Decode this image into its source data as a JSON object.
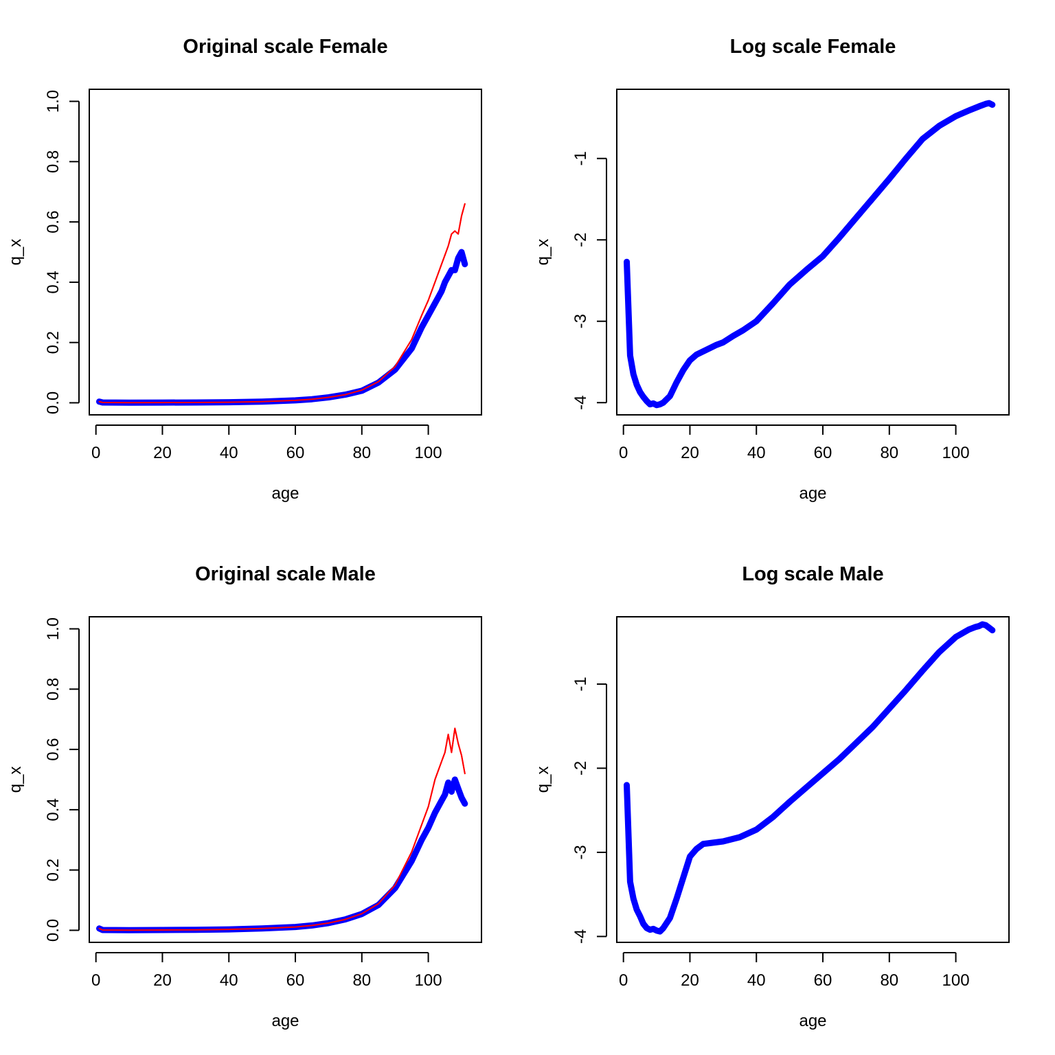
{
  "chart_data": [
    {
      "type": "line",
      "title": "Original scale Female",
      "xlabel": "age",
      "ylabel": "q_x",
      "xlim": [
        -2,
        116
      ],
      "ylim": [
        -0.04,
        1.04
      ],
      "xticks": [
        0,
        20,
        40,
        60,
        80,
        100
      ],
      "yticks": [
        0.0,
        0.2,
        0.4,
        0.6,
        0.8,
        1.0
      ],
      "xtick_labels": [
        "0",
        "20",
        "40",
        "60",
        "80",
        "100"
      ],
      "ytick_labels": [
        "0.0",
        "0.2",
        "0.4",
        "0.6",
        "0.8",
        "1.0"
      ],
      "grid": false,
      "legend": "none",
      "series": [
        {
          "color": "#ff0000",
          "style": "thin",
          "x": [
            1,
            2,
            10,
            20,
            30,
            40,
            50,
            60,
            65,
            70,
            75,
            80,
            85,
            90,
            95,
            98,
            100,
            102,
            104,
            105,
            106,
            107,
            108,
            109,
            110,
            111
          ],
          "y": [
            0.004,
            0.001,
            0.0005,
            0.0008,
            0.001,
            0.002,
            0.004,
            0.008,
            0.012,
            0.018,
            0.027,
            0.042,
            0.07,
            0.12,
            0.21,
            0.29,
            0.34,
            0.4,
            0.46,
            0.49,
            0.52,
            0.56,
            0.57,
            0.56,
            0.62,
            0.66
          ]
        },
        {
          "color": "#0000ff",
          "style": "thick",
          "x": [
            1,
            2,
            10,
            20,
            30,
            40,
            50,
            60,
            65,
            70,
            75,
            80,
            85,
            90,
            95,
            98,
            100,
            102,
            104,
            105,
            106,
            107,
            108,
            109,
            110,
            111
          ],
          "y": [
            0.004,
            0.001,
            0.0005,
            0.0008,
            0.001,
            0.002,
            0.004,
            0.008,
            0.012,
            0.018,
            0.027,
            0.04,
            0.067,
            0.11,
            0.18,
            0.25,
            0.29,
            0.33,
            0.37,
            0.4,
            0.42,
            0.44,
            0.44,
            0.48,
            0.5,
            0.46
          ]
        }
      ]
    },
    {
      "type": "line",
      "title": "Log scale Female",
      "xlabel": "age",
      "ylabel": "q_x",
      "xlim": [
        -2,
        116
      ],
      "ylim": [
        -4.15,
        -0.15
      ],
      "xticks": [
        0,
        20,
        40,
        60,
        80,
        100
      ],
      "yticks": [
        -4,
        -3,
        -2,
        -1
      ],
      "xtick_labels": [
        "0",
        "20",
        "40",
        "60",
        "80",
        "100"
      ],
      "ytick_labels": [
        "-4",
        "-3",
        "-2",
        "-1"
      ],
      "grid": false,
      "legend": "none",
      "series": [
        {
          "color": "#0000ff",
          "style": "thick",
          "x": [
            1,
            2,
            3,
            4,
            5,
            6,
            7,
            8,
            9,
            10,
            11,
            12,
            14,
            16,
            18,
            20,
            22,
            25,
            28,
            30,
            33,
            36,
            40,
            45,
            50,
            55,
            60,
            65,
            70,
            75,
            80,
            85,
            90,
            95,
            100,
            104,
            107,
            109,
            110,
            111
          ],
          "y": [
            -2.27,
            -3.42,
            -3.65,
            -3.78,
            -3.87,
            -3.93,
            -3.98,
            -4.02,
            -4.01,
            -4.03,
            -4.02,
            -4.0,
            -3.92,
            -3.75,
            -3.6,
            -3.48,
            -3.41,
            -3.35,
            -3.29,
            -3.26,
            -3.18,
            -3.11,
            -3.0,
            -2.78,
            -2.55,
            -2.37,
            -2.2,
            -1.97,
            -1.73,
            -1.49,
            -1.25,
            -1.0,
            -0.76,
            -0.6,
            -0.48,
            -0.41,
            -0.36,
            -0.33,
            -0.32,
            -0.34
          ]
        }
      ]
    },
    {
      "type": "line",
      "title": "Original scale Male",
      "xlabel": "age",
      "ylabel": "q_x",
      "xlim": [
        -2,
        116
      ],
      "ylim": [
        -0.04,
        1.04
      ],
      "xticks": [
        0,
        20,
        40,
        60,
        80,
        100
      ],
      "yticks": [
        0.0,
        0.2,
        0.4,
        0.6,
        0.8,
        1.0
      ],
      "xtick_labels": [
        "0",
        "20",
        "40",
        "60",
        "80",
        "100"
      ],
      "ytick_labels": [
        "0.0",
        "0.2",
        "0.4",
        "0.6",
        "0.8",
        "1.0"
      ],
      "grid": false,
      "legend": "none",
      "series": [
        {
          "color": "#ff0000",
          "style": "thin",
          "x": [
            1,
            2,
            10,
            20,
            30,
            40,
            50,
            60,
            65,
            70,
            75,
            80,
            85,
            90,
            95,
            98,
            100,
            102,
            104,
            105,
            106,
            107,
            108,
            109,
            110,
            111
          ],
          "y": [
            0.006,
            0.001,
            0.0005,
            0.001,
            0.0015,
            0.003,
            0.006,
            0.011,
            0.016,
            0.024,
            0.036,
            0.055,
            0.088,
            0.15,
            0.26,
            0.35,
            0.41,
            0.5,
            0.56,
            0.59,
            0.65,
            0.59,
            0.67,
            0.62,
            0.58,
            0.52
          ]
        },
        {
          "color": "#0000ff",
          "style": "thick",
          "x": [
            1,
            2,
            10,
            20,
            30,
            40,
            50,
            60,
            65,
            70,
            75,
            80,
            85,
            90,
            95,
            98,
            100,
            102,
            104,
            105,
            106,
            107,
            108,
            109,
            110,
            111
          ],
          "y": [
            0.006,
            0.001,
            0.0005,
            0.001,
            0.0015,
            0.003,
            0.006,
            0.011,
            0.016,
            0.024,
            0.036,
            0.054,
            0.084,
            0.14,
            0.23,
            0.3,
            0.34,
            0.39,
            0.43,
            0.45,
            0.49,
            0.46,
            0.5,
            0.47,
            0.44,
            0.42
          ]
        }
      ]
    },
    {
      "type": "line",
      "title": "Log scale Male",
      "xlabel": "age",
      "ylabel": "q_x",
      "xlim": [
        -2,
        116
      ],
      "ylim": [
        -4.07,
        -0.2
      ],
      "xticks": [
        0,
        20,
        40,
        60,
        80,
        100
      ],
      "yticks": [
        -4,
        -3,
        -2,
        -1
      ],
      "xtick_labels": [
        "0",
        "20",
        "40",
        "60",
        "80",
        "100"
      ],
      "ytick_labels": [
        "-4",
        "-3",
        "-2",
        "-1"
      ],
      "grid": false,
      "legend": "none",
      "series": [
        {
          "color": "#0000ff",
          "style": "thick",
          "x": [
            1,
            2,
            3,
            4,
            5,
            6,
            7,
            8,
            9,
            10,
            11,
            12,
            14,
            16,
            18,
            20,
            22,
            24,
            26,
            30,
            35,
            40,
            45,
            50,
            55,
            60,
            65,
            70,
            75,
            80,
            85,
            90,
            95,
            100,
            104,
            106,
            107,
            108,
            109,
            110,
            111
          ],
          "y": [
            -2.2,
            -3.35,
            -3.55,
            -3.68,
            -3.76,
            -3.85,
            -3.9,
            -3.92,
            -3.91,
            -3.93,
            -3.94,
            -3.9,
            -3.78,
            -3.55,
            -3.3,
            -3.05,
            -2.96,
            -2.9,
            -2.89,
            -2.87,
            -2.82,
            -2.73,
            -2.58,
            -2.4,
            -2.23,
            -2.06,
            -1.89,
            -1.7,
            -1.51,
            -1.29,
            -1.07,
            -0.84,
            -0.62,
            -0.44,
            -0.35,
            -0.32,
            -0.31,
            -0.29,
            -0.3,
            -0.33,
            -0.36
          ]
        }
      ]
    }
  ]
}
